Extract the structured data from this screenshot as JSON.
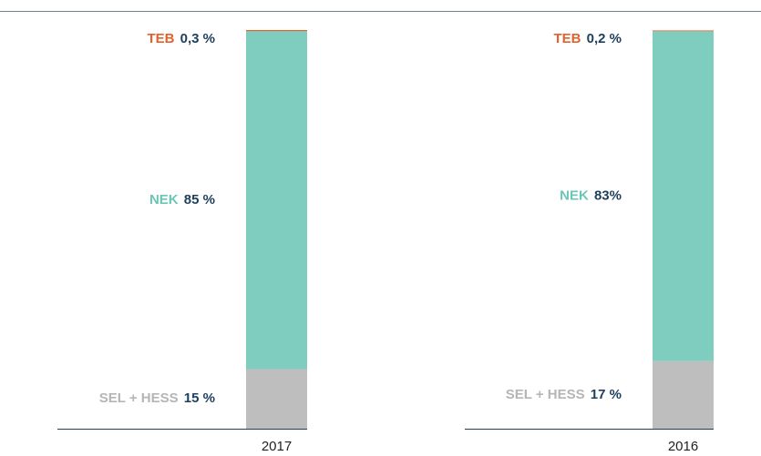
{
  "chart_data": {
    "type": "bar",
    "stacked": true,
    "categories": [
      "2017",
      "2016"
    ],
    "series": [
      {
        "name": "SEL + HESS",
        "color": "#bebebe",
        "label_color": "#b5b5b5",
        "values": [
          15,
          17
        ],
        "value_labels": [
          "15 %",
          "17 %"
        ]
      },
      {
        "name": "NEK",
        "color": "#7ecdbf",
        "label_color": "#6cc6b6",
        "values": [
          85,
          83
        ],
        "value_labels": [
          "85 %",
          "83%"
        ]
      },
      {
        "name": "TEB",
        "color": "#e0622e",
        "label_color": "#e0622e",
        "values": [
          0.3,
          0.2
        ],
        "value_labels": [
          "0,3 %",
          "0,2 %"
        ]
      }
    ]
  }
}
